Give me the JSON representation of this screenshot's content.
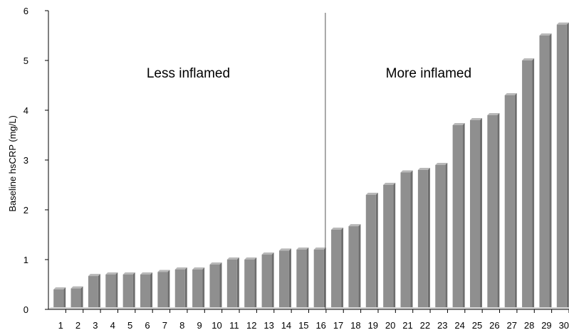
{
  "chart_data": {
    "type": "bar",
    "title": "",
    "xlabel": "",
    "ylabel": "Baseline hsCRP (mg/L)",
    "ylim": [
      0,
      6
    ],
    "yticks": [
      0,
      1,
      2,
      3,
      4,
      5,
      6
    ],
    "grid": false,
    "legend": "none",
    "bar_color": "#8f8f8f",
    "categories": [
      "1",
      "2",
      "3",
      "4",
      "5",
      "6",
      "7",
      "8",
      "9",
      "10",
      "11",
      "12",
      "13",
      "14",
      "15",
      "16",
      "17",
      "18",
      "19",
      "20",
      "21",
      "22",
      "23",
      "24",
      "25",
      "26",
      "27",
      "28",
      "29",
      "30"
    ],
    "values": [
      0.4,
      0.42,
      0.67,
      0.7,
      0.7,
      0.7,
      0.75,
      0.8,
      0.8,
      0.9,
      1.0,
      1.0,
      1.1,
      1.18,
      1.2,
      1.2,
      1.6,
      1.67,
      2.3,
      2.5,
      2.75,
      2.8,
      2.9,
      3.7,
      3.8,
      3.9,
      4.3,
      5.0,
      5.5,
      5.72
    ],
    "divider_after_category": "16",
    "annotations": [
      {
        "text": "Less inflamed",
        "group": "left"
      },
      {
        "text": "More inflamed",
        "group": "right"
      }
    ]
  }
}
